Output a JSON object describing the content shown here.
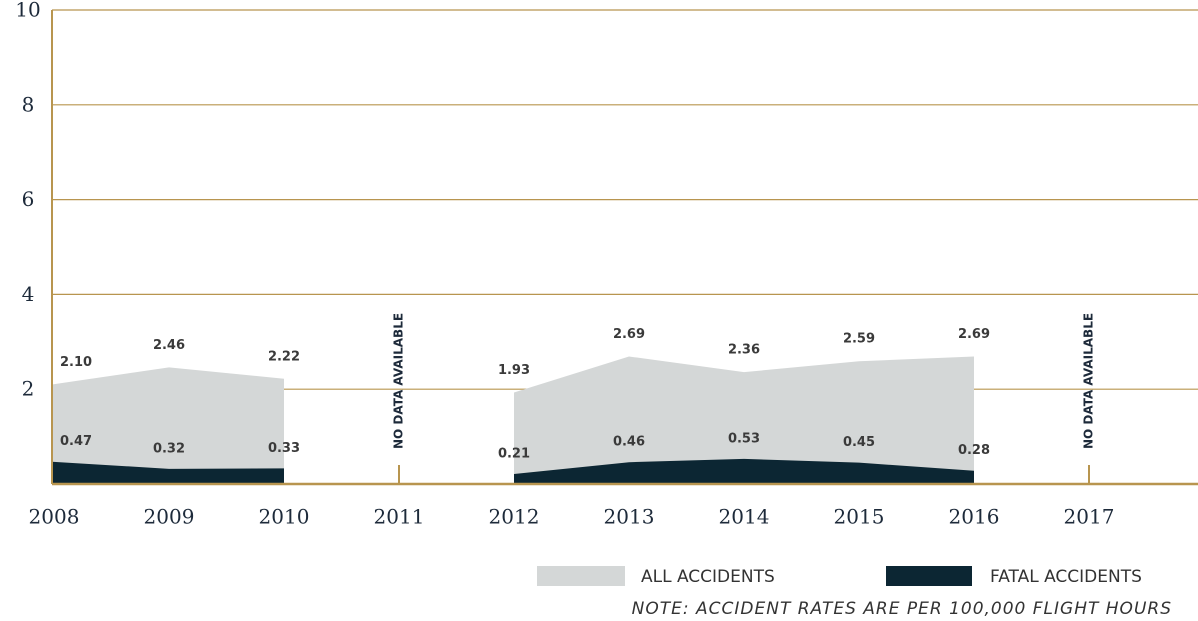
{
  "chart_data": {
    "type": "area",
    "categories": [
      "2008",
      "2009",
      "2010",
      "2011",
      "2012",
      "2013",
      "2014",
      "2015",
      "2016",
      "2017"
    ],
    "series": [
      {
        "name": "ALL ACCIDENTS",
        "color": "#d4d7d7",
        "values": [
          2.1,
          2.46,
          2.22,
          null,
          1.93,
          2.69,
          2.36,
          2.59,
          2.69,
          null
        ],
        "value_labels": [
          "2.10",
          "2.46",
          "2.22",
          null,
          "1.93",
          "2.69",
          "2.36",
          "2.59",
          "2.69",
          null
        ]
      },
      {
        "name": "FATAL ACCIDENTS",
        "color": "#0c2633",
        "values": [
          0.47,
          0.32,
          0.33,
          null,
          0.21,
          0.46,
          0.53,
          0.45,
          0.28,
          null
        ],
        "value_labels": [
          "0.47",
          "0.32",
          "0.33",
          null,
          "0.21",
          "0.46",
          "0.53",
          "0.45",
          "0.28",
          null
        ]
      }
    ],
    "annotation": "NO DATA AVAILABLE",
    "note": "NOTE: ACCIDENT RATES ARE PER 100,000 FLIGHT HOURS",
    "ylim": [
      0,
      10
    ],
    "yticks": [
      2,
      4,
      6,
      8,
      10
    ],
    "grid": true,
    "grid_color": "#b8954f"
  }
}
